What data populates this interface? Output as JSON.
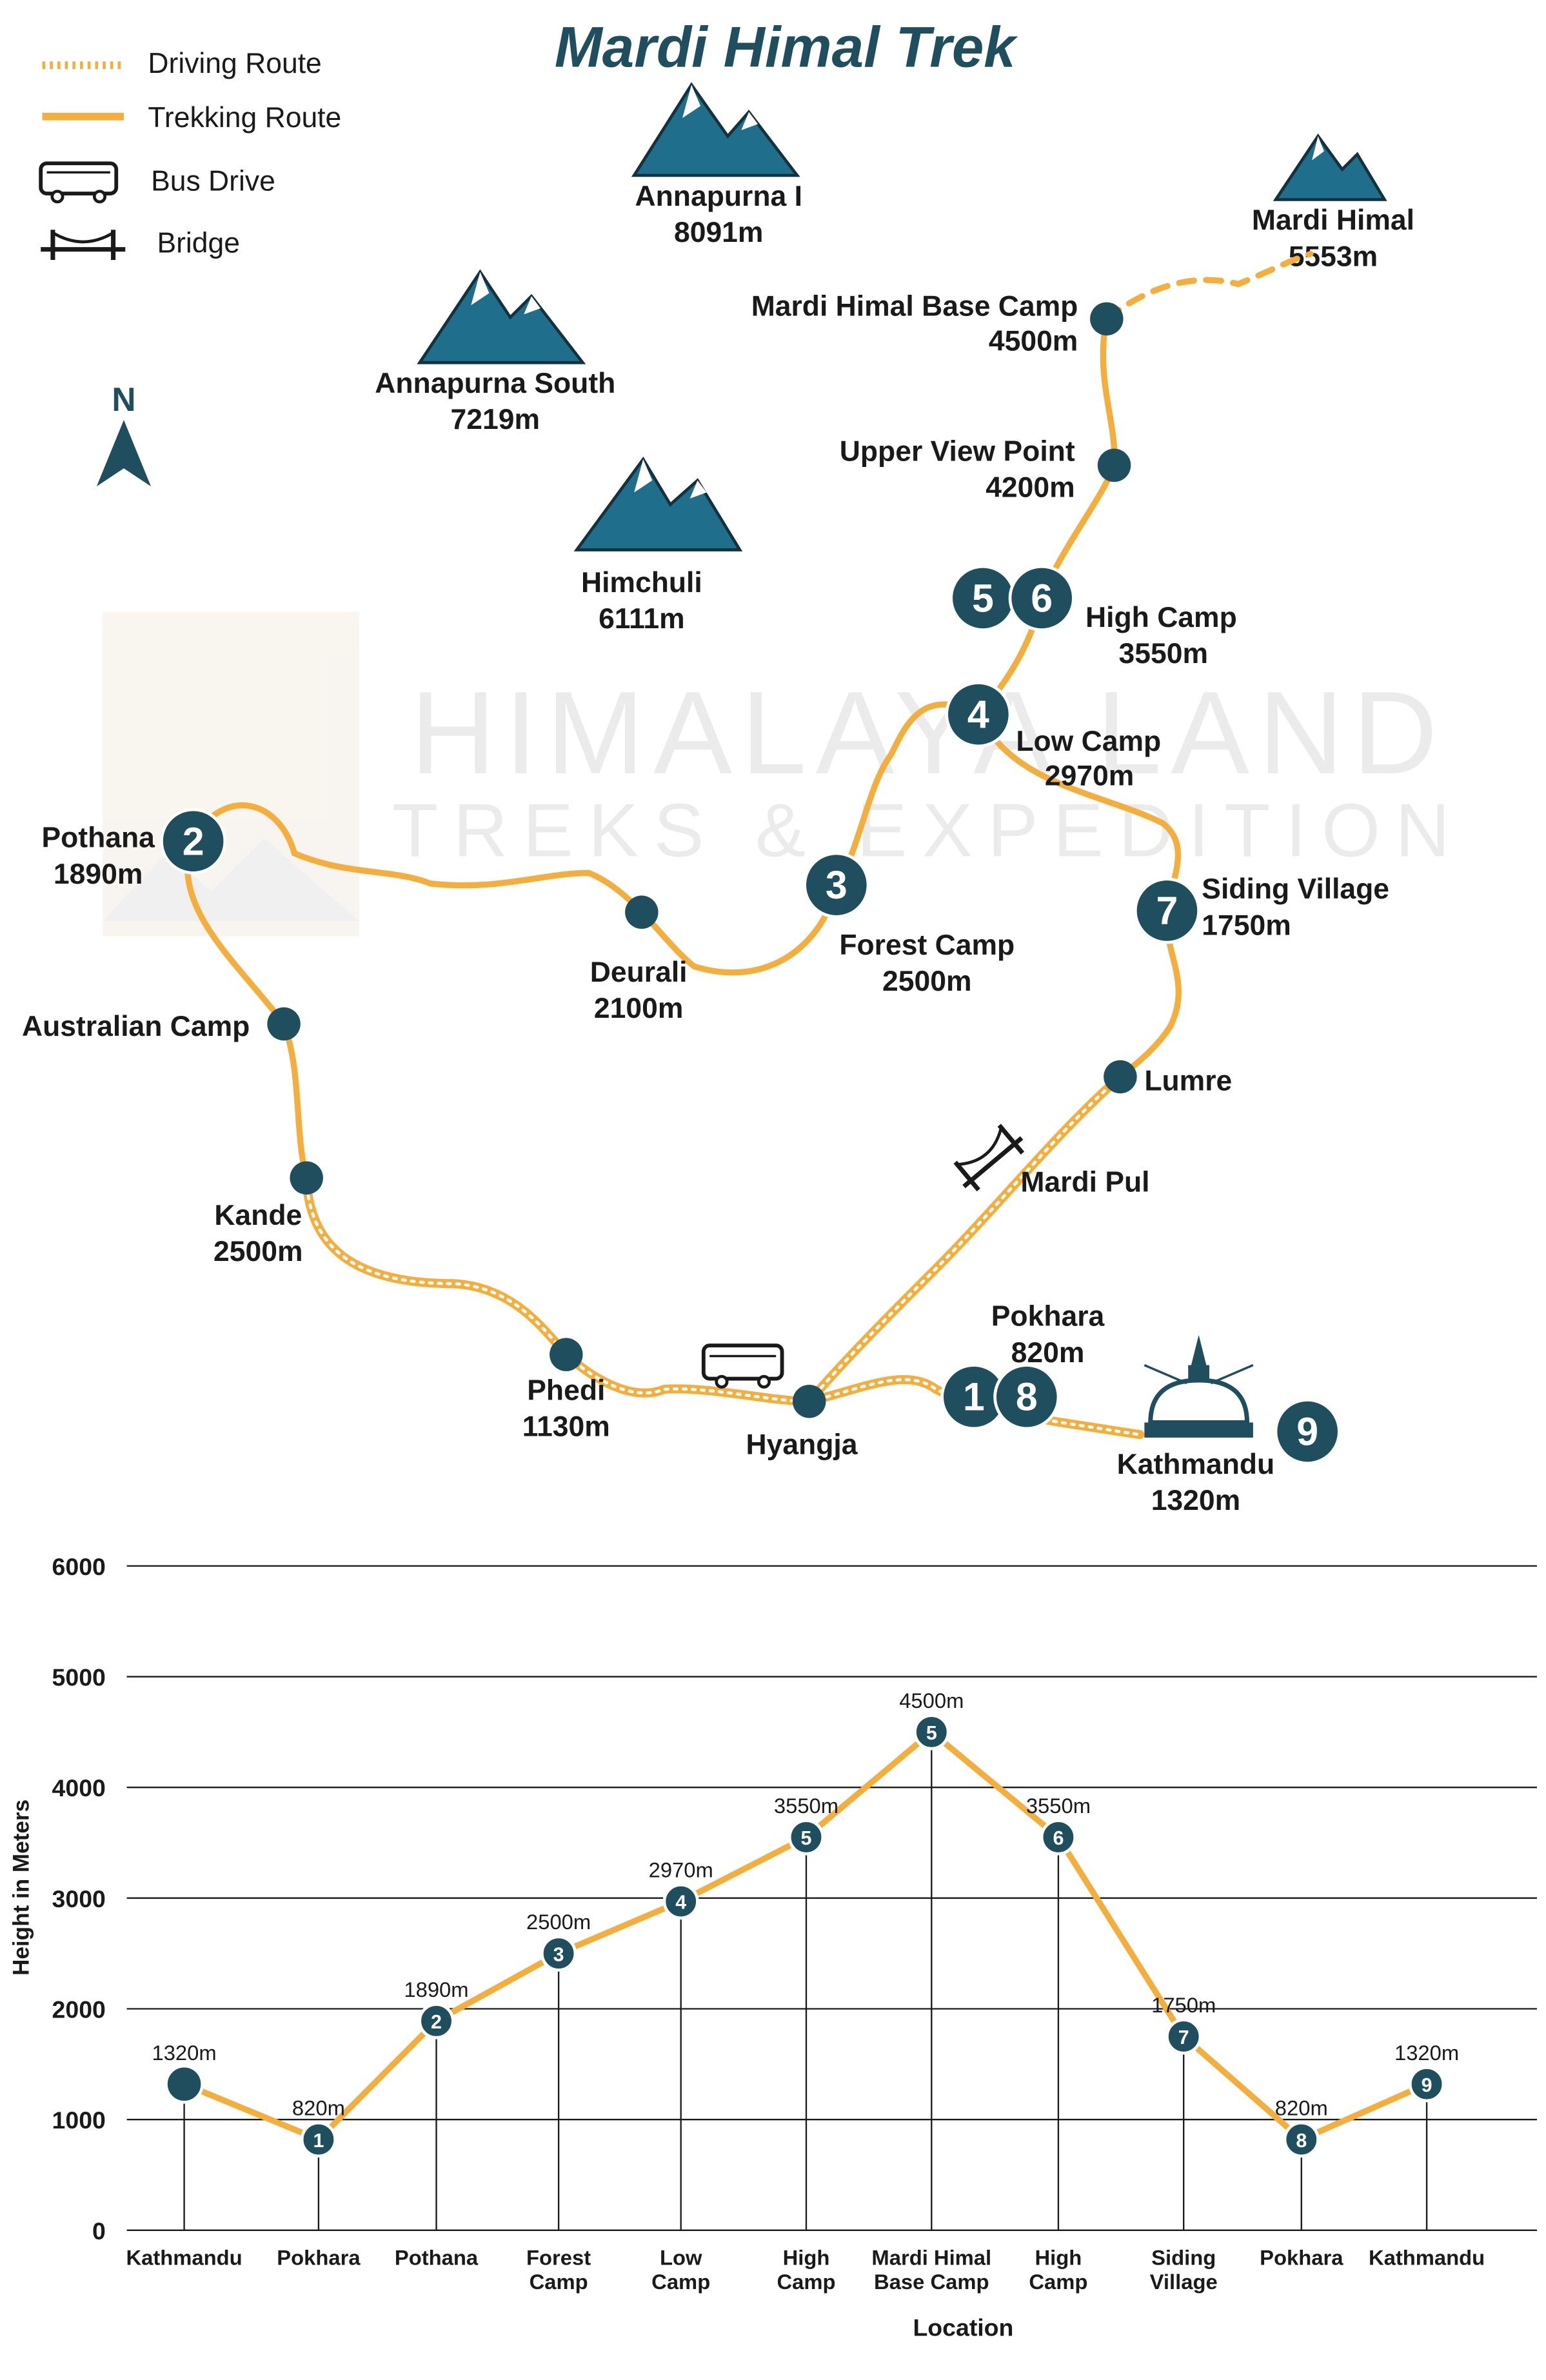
{
  "title": "Mardi Himal Trek",
  "colors": {
    "route": "#F4AE3D",
    "marker": "#1F4E5F",
    "mountain": "#1F6E8C",
    "text": "#1a1a1a",
    "watermark": "#E8E8E8"
  },
  "legend": [
    {
      "label": "Driving Route",
      "icon": "dotted-line"
    },
    {
      "label": "Trekking Route",
      "icon": "solid-line"
    },
    {
      "label": "Bus Drive",
      "icon": "bus-icon"
    },
    {
      "label": "Bridge",
      "icon": "bridge-icon"
    }
  ],
  "compass": {
    "label": "N"
  },
  "watermark": {
    "line1": "HIMALAYA LAND",
    "line2": "TREKS & EXPEDITION"
  },
  "peaks": [
    {
      "name": "Annapurna I",
      "elev": "8091m"
    },
    {
      "name": "Annapurna South",
      "elev": "7219m"
    },
    {
      "name": "Himchuli",
      "elev": "6111m"
    },
    {
      "name": "Mardi Himal",
      "elev": "5553m"
    }
  ],
  "places": [
    {
      "name": "Mardi Himal Base Camp",
      "elev": "4500m"
    },
    {
      "name": "Upper View Point",
      "elev": "4200m"
    },
    {
      "name": "High Camp",
      "elev": "3550m"
    },
    {
      "name": "Low Camp",
      "elev": "2970m"
    },
    {
      "name": "Siding Village",
      "elev": "1750m"
    },
    {
      "name": "Forest Camp",
      "elev": "2500m"
    },
    {
      "name": "Deurali",
      "elev": "2100m"
    },
    {
      "name": "Pothana",
      "elev": "1890m"
    },
    {
      "name": "Australian Camp",
      "elev": ""
    },
    {
      "name": "Kande",
      "elev": "2500m"
    },
    {
      "name": "Lumre",
      "elev": ""
    },
    {
      "name": "Mardi Pul",
      "elev": ""
    },
    {
      "name": "Phedi",
      "elev": "1130m"
    },
    {
      "name": "Hyangja",
      "elev": ""
    },
    {
      "name": "Pokhara",
      "elev": "820m"
    },
    {
      "name": "Kathmandu",
      "elev": "1320m"
    }
  ],
  "stops": [
    "1",
    "2",
    "3",
    "4",
    "5",
    "6",
    "7",
    "8",
    "9"
  ],
  "chart_data": {
    "type": "line",
    "ylabel": "Height in Meters",
    "xlabel": "Location",
    "ylim": [
      0,
      6000
    ],
    "yticks": [
      0,
      1000,
      2000,
      3000,
      4000,
      5000,
      6000
    ],
    "grid": true,
    "categories": [
      "Kathmandu",
      "Pokhara",
      "Pothana",
      "Forest Camp",
      "Low Camp",
      "High Camp",
      "Mardi Himal Base Camp",
      "High Camp",
      "Siding Village",
      "Pokhara",
      "Kathmandu"
    ],
    "values": [
      1320,
      820,
      1890,
      2500,
      2970,
      3550,
      4500,
      3550,
      1750,
      820,
      1320
    ],
    "value_labels": [
      "1320m",
      "820m",
      "1890m",
      "2500m",
      "2970m",
      "3550m",
      "4500m",
      "3550m",
      "1750m",
      "820m",
      "1320m"
    ],
    "markers": [
      "",
      "1",
      "2",
      "3",
      "4",
      "5",
      "5",
      "6",
      "7",
      "8",
      "9"
    ]
  }
}
